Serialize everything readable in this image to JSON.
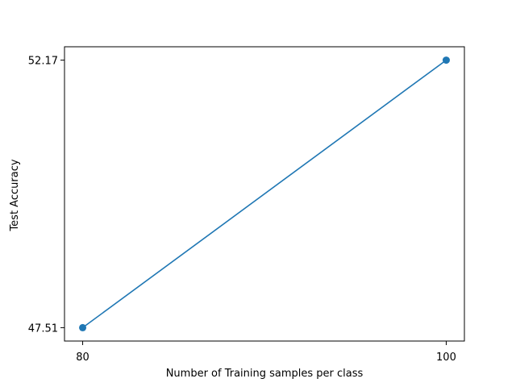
{
  "chart_data": {
    "type": "line",
    "title": "",
    "xlabel": "Number of Training samples per class",
    "ylabel": "Test Accuracy",
    "x": [
      80,
      100
    ],
    "xticks": [
      "80",
      "100"
    ],
    "yticks": [
      "47.51",
      "52.17"
    ],
    "xlim": [
      79,
      101
    ],
    "ylim": [
      47.277,
      52.403
    ],
    "series": [
      {
        "values": [
          47.51,
          52.17
        ],
        "color": "#1f77b4",
        "marker": "circle"
      }
    ],
    "grid": false
  }
}
